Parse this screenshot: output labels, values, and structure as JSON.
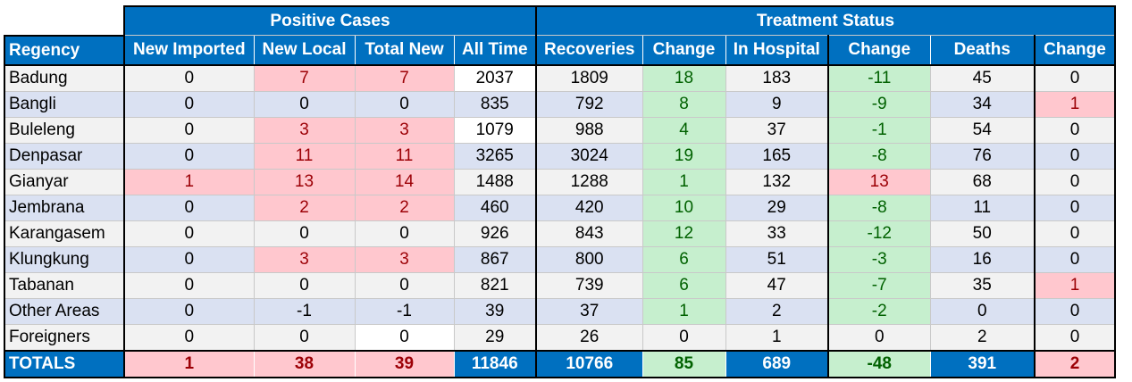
{
  "groups": {
    "positive": "Positive Cases",
    "treatment": "Treatment Status"
  },
  "headers": [
    "Regency",
    "New Imported",
    "New Local",
    "Total New",
    "All Time",
    "Recoveries",
    "Change",
    "In Hospital",
    "Change",
    "Deaths",
    "Change"
  ],
  "rows": [
    {
      "name": "Badung",
      "cells": [
        "0",
        "7",
        "7",
        "2037",
        "1809",
        "18",
        "183",
        "-11",
        "45",
        "0"
      ]
    },
    {
      "name": "Bangli",
      "cells": [
        "0",
        "0",
        "0",
        "835",
        "792",
        "8",
        "9",
        "-9",
        "34",
        "1"
      ]
    },
    {
      "name": "Buleleng",
      "cells": [
        "0",
        "3",
        "3",
        "1079",
        "988",
        "4",
        "37",
        "-1",
        "54",
        "0"
      ]
    },
    {
      "name": "Denpasar",
      "cells": [
        "0",
        "11",
        "11",
        "3265",
        "3024",
        "19",
        "165",
        "-8",
        "76",
        "0"
      ]
    },
    {
      "name": "Gianyar",
      "cells": [
        "1",
        "13",
        "14",
        "1488",
        "1288",
        "1",
        "132",
        "13",
        "68",
        "0"
      ]
    },
    {
      "name": "Jembrana",
      "cells": [
        "0",
        "2",
        "2",
        "460",
        "420",
        "10",
        "29",
        "-8",
        "11",
        "0"
      ]
    },
    {
      "name": "Karangasem",
      "cells": [
        "0",
        "0",
        "0",
        "926",
        "843",
        "12",
        "33",
        "-12",
        "50",
        "0"
      ]
    },
    {
      "name": "Klungkung",
      "cells": [
        "0",
        "3",
        "3",
        "867",
        "800",
        "6",
        "51",
        "-3",
        "16",
        "0"
      ]
    },
    {
      "name": "Tabanan",
      "cells": [
        "0",
        "0",
        "0",
        "821",
        "739",
        "6",
        "47",
        "-7",
        "35",
        "1"
      ]
    },
    {
      "name": "Other Areas",
      "cells": [
        "0",
        "-1",
        "-1",
        "39",
        "37",
        "1",
        "2",
        "-2",
        "0",
        "0"
      ]
    },
    {
      "name": "Foreigners",
      "cells": [
        "0",
        "0",
        "0",
        "29",
        "26",
        "0",
        "1",
        "0",
        "2",
        "0"
      ]
    }
  ],
  "totals": {
    "name": "TOTALS",
    "cells": [
      "1",
      "38",
      "39",
      "11846",
      "10766",
      "85",
      "689",
      "-48",
      "391",
      "2"
    ]
  },
  "colors": {
    "header_blue": "#0070c0",
    "positive_red_bg": "#ffc7ce",
    "positive_red_text": "#9c0006",
    "good_green_bg": "#c6efce",
    "good_green_text": "#006100",
    "band_light": "#f2f2f2",
    "band_blue": "#dae1f2"
  }
}
